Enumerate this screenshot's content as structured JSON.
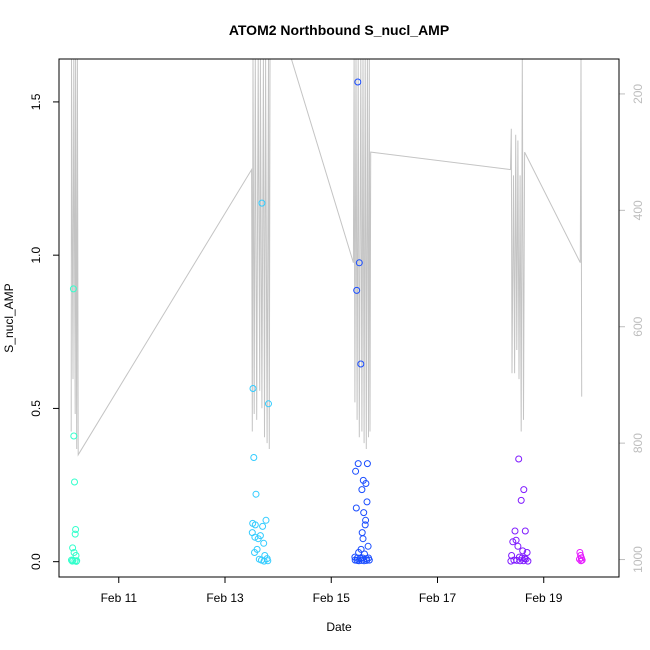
{
  "chart_data": {
    "type": "scatter",
    "title": "ATOM2 Northbound S_nucl_AMP",
    "xlabel": "Date",
    "ylabel": "S_nucl_AMP",
    "x_unit": "days",
    "xlim": [
      "Feb 09 21:00",
      "Feb 20 10:00"
    ],
    "ylim": [
      -0.05,
      1.64
    ],
    "x_ticks": [
      {
        "label": "Feb 11",
        "value": "Feb 11"
      },
      {
        "label": "Feb 13",
        "value": "Feb 13"
      },
      {
        "label": "Feb 15",
        "value": "Feb 15"
      },
      {
        "label": "Feb 17",
        "value": "Feb 17"
      },
      {
        "label": "Feb 19",
        "value": "Feb 19"
      }
    ],
    "y_ticks": [
      {
        "label": "0.0",
        "value": 0
      },
      {
        "label": "0.5",
        "value": 0.5
      },
      {
        "label": "1.0",
        "value": 1.0
      },
      {
        "label": "1.5",
        "value": 1.5
      }
    ],
    "secondary_axis": {
      "side": "right",
      "reversed": true,
      "range": [
        1030,
        140
      ],
      "ticks": [
        {
          "label": "200",
          "value": 200
        },
        {
          "label": "400",
          "value": 400
        },
        {
          "label": "600",
          "value": 600
        },
        {
          "label": "800",
          "value": 800
        },
        {
          "label": "1000",
          "value": 1000
        }
      ],
      "color": "#bdbdbd"
    },
    "marker": "open-circle",
    "grid": false,
    "series": [
      {
        "color": "#33ffcc",
        "points": [
          [
            "Feb 10 03:30",
            0.89
          ],
          [
            "Feb 10 03:40",
            0.41
          ],
          [
            "Feb 10 04:00",
            0.26
          ],
          [
            "Feb 10 04:30",
            0.105
          ],
          [
            "Feb 10 04:20",
            0.09
          ],
          [
            "Feb 10 03:10",
            0.045
          ],
          [
            "Feb 10 03:50",
            0.03
          ],
          [
            "Feb 10 04:40",
            0.02
          ],
          [
            "Feb 10 02:40",
            0.005
          ],
          [
            "Feb 10 03:20",
            0.004
          ],
          [
            "Feb 10 04:10",
            0.003
          ],
          [
            "Feb 10 05:00",
            0.003
          ],
          [
            "Feb 10 03:00",
            0.002
          ],
          [
            "Feb 10 04:50",
            0.001
          ]
        ]
      },
      {
        "color": "#33ccff",
        "points": [
          [
            "Feb 13 12:40",
            0.565
          ],
          [
            "Feb 13 16:40",
            1.17
          ],
          [
            "Feb 13 19:40",
            0.515
          ],
          [
            "Feb 13 13:00",
            0.34
          ],
          [
            "Feb 13 14:00",
            0.22
          ],
          [
            "Feb 13 18:30",
            0.135
          ],
          [
            "Feb 13 12:30",
            0.125
          ],
          [
            "Feb 13 13:40",
            0.12
          ],
          [
            "Feb 13 17:00",
            0.115
          ],
          [
            "Feb 13 12:20",
            0.095
          ],
          [
            "Feb 13 16:00",
            0.085
          ],
          [
            "Feb 13 13:30",
            0.08
          ],
          [
            "Feb 13 15:00",
            0.075
          ],
          [
            "Feb 13 17:30",
            0.06
          ],
          [
            "Feb 13 14:30",
            0.04
          ],
          [
            "Feb 13 13:20",
            0.03
          ],
          [
            "Feb 13 18:00",
            0.02
          ],
          [
            "Feb 13 19:00",
            0.01
          ],
          [
            "Feb 13 15:30",
            0.008
          ],
          [
            "Feb 13 16:30",
            0.005
          ],
          [
            "Feb 13 19:20",
            0.003
          ],
          [
            "Feb 13 17:40",
            0.002
          ]
        ]
      },
      {
        "color": "#1a4dff",
        "points": [
          [
            "Feb 15 12:00",
            1.565
          ],
          [
            "Feb 15 12:40",
            0.975
          ],
          [
            "Feb 15 11:30",
            0.885
          ],
          [
            "Feb 15 13:20",
            0.645
          ],
          [
            "Feb 15 11:00",
            0.295
          ],
          [
            "Feb 15 12:10",
            0.32
          ],
          [
            "Feb 15 16:20",
            0.32
          ],
          [
            "Feb 15 14:30",
            0.265
          ],
          [
            "Feb 15 15:40",
            0.255
          ],
          [
            "Feb 15 13:50",
            0.235
          ],
          [
            "Feb 15 16:10",
            0.195
          ],
          [
            "Feb 15 11:20",
            0.175
          ],
          [
            "Feb 15 14:40",
            0.16
          ],
          [
            "Feb 15 15:30",
            0.135
          ],
          [
            "Feb 15 15:20",
            0.12
          ],
          [
            "Feb 15 14:00",
            0.095
          ],
          [
            "Feb 15 14:20",
            0.075
          ],
          [
            "Feb 15 16:40",
            0.05
          ],
          [
            "Feb 15 13:30",
            0.04
          ],
          [
            "Feb 15 12:20",
            0.03
          ],
          [
            "Feb 15 15:00",
            0.025
          ],
          [
            "Feb 15 10:40",
            0.015
          ],
          [
            "Feb 15 11:50",
            0.012
          ],
          [
            "Feb 15 13:10",
            0.01
          ],
          [
            "Feb 15 14:10",
            0.012
          ],
          [
            "Feb 15 15:50",
            0.01
          ],
          [
            "Feb 15 16:50",
            0.012
          ],
          [
            "Feb 15 10:50",
            0.005
          ],
          [
            "Feb 15 11:40",
            0.004
          ],
          [
            "Feb 15 12:30",
            0.003
          ],
          [
            "Feb 15 13:40",
            0.004
          ],
          [
            "Feb 15 14:50",
            0.003
          ],
          [
            "Feb 15 16:00",
            0.004
          ],
          [
            "Feb 15 17:10",
            0.005
          ]
        ]
      },
      {
        "color": "#7f1aff",
        "points": [
          [
            "Feb 18 12:40",
            0.335
          ],
          [
            "Feb 18 15:00",
            0.235
          ],
          [
            "Feb 18 13:50",
            0.2
          ],
          [
            "Feb 18 11:00",
            0.1
          ],
          [
            "Feb 18 15:40",
            0.1
          ],
          [
            "Feb 18 10:00",
            0.065
          ],
          [
            "Feb 18 11:30",
            0.07
          ],
          [
            "Feb 18 12:20",
            0.05
          ],
          [
            "Feb 18 14:30",
            0.035
          ],
          [
            "Feb 18 16:30",
            0.03
          ],
          [
            "Feb 18 09:30",
            0.02
          ],
          [
            "Feb 18 13:00",
            0.015
          ],
          [
            "Feb 18 14:10",
            0.012
          ],
          [
            "Feb 18 15:20",
            0.01
          ],
          [
            "Feb 18 16:00",
            0.008
          ],
          [
            "Feb 18 10:30",
            0.005
          ],
          [
            "Feb 18 11:50",
            0.004
          ],
          [
            "Feb 18 13:20",
            0.003
          ],
          [
            "Feb 18 14:50",
            0.003
          ],
          [
            "Feb 18 16:50",
            0.002
          ],
          [
            "Feb 18 09:10",
            0.002
          ]
        ]
      },
      {
        "color": "#e61aff",
        "points": [
          [
            "Feb 19 16:20",
            0.03
          ],
          [
            "Feb 19 16:40",
            0.02
          ],
          [
            "Feb 19 17:00",
            0.012
          ],
          [
            "Feb 19 16:10",
            0.008
          ],
          [
            "Feb 19 17:20",
            0.005
          ],
          [
            "Feb 19 16:50",
            0.003
          ]
        ]
      }
    ],
    "secondary_trace": {
      "color": "#c4c4c4",
      "points": [
        [
          "Feb 10 02:30",
          780
        ],
        [
          "Feb 10 02:40",
          140
        ],
        [
          "Feb 10 03:20",
          690
        ],
        [
          "Feb 10 03:40",
          140
        ],
        [
          "Feb 10 04:20",
          750
        ],
        [
          "Feb 10 04:30",
          140
        ],
        [
          "Feb 10 05:00",
          810
        ],
        [
          "Feb 10 05:20",
          140
        ],
        [
          "Feb 10 05:40",
          820
        ],
        [
          "Feb 13 12:00",
          330
        ],
        [
          "Feb 13 12:20",
          780
        ],
        [
          "Feb 13 12:40",
          140
        ],
        [
          "Feb 13 13:10",
          750
        ],
        [
          "Feb 13 13:40",
          140
        ],
        [
          "Feb 13 14:20",
          760
        ],
        [
          "Feb 13 15:00",
          140
        ],
        [
          "Feb 13 15:40",
          710
        ],
        [
          "Feb 13 16:00",
          140
        ],
        [
          "Feb 13 16:40",
          740
        ],
        [
          "Feb 13 17:20",
          140
        ],
        [
          "Feb 13 17:50",
          790
        ],
        [
          "Feb 13 18:20",
          140
        ],
        [
          "Feb 13 19:00",
          800
        ],
        [
          "Feb 13 19:40",
          140
        ],
        [
          "Feb 13 20:00",
          810
        ],
        [
          "Feb 13 20:20",
          140
        ],
        [
          "Feb 14 06:00",
          140
        ],
        [
          "Feb 15 10:00",
          490
        ],
        [
          "Feb 15 10:20",
          140
        ],
        [
          "Feb 15 10:40",
          730
        ],
        [
          "Feb 15 11:10",
          140
        ],
        [
          "Feb 15 11:40",
          760
        ],
        [
          "Feb 15 12:10",
          140
        ],
        [
          "Feb 15 12:40",
          790
        ],
        [
          "Feb 15 13:20",
          140
        ],
        [
          "Feb 15 13:50",
          780
        ],
        [
          "Feb 15 14:20",
          140
        ],
        [
          "Feb 15 14:50",
          800
        ],
        [
          "Feb 15 15:20",
          140
        ],
        [
          "Feb 15 15:50",
          810
        ],
        [
          "Feb 15 16:20",
          140
        ],
        [
          "Feb 15 16:50",
          790
        ],
        [
          "Feb 15 17:10",
          140
        ],
        [
          "Feb 15 17:30",
          780
        ],
        [
          "Feb 15 17:50",
          300
        ],
        [
          "Feb 18 09:00",
          330
        ],
        [
          "Feb 18 09:20",
          260
        ],
        [
          "Feb 18 09:40",
          680
        ],
        [
          "Feb 18 10:20",
          340
        ],
        [
          "Feb 18 10:50",
          680
        ],
        [
          "Feb 18 11:20",
          270
        ],
        [
          "Feb 18 11:50",
          640
        ],
        [
          "Feb 18 12:20",
          280
        ],
        [
          "Feb 18 12:50",
          690
        ],
        [
          "Feb 18 13:20",
          340
        ],
        [
          "Feb 18 13:50",
          780
        ],
        [
          "Feb 18 14:20",
          140
        ],
        [
          "Feb 18 14:50",
          760
        ],
        [
          "Feb 18 15:20",
          300
        ],
        [
          "Feb 19 16:30",
          490
        ],
        [
          "Feb 19 16:50",
          140
        ],
        [
          "Feb 19 17:10",
          720
        ]
      ]
    }
  }
}
